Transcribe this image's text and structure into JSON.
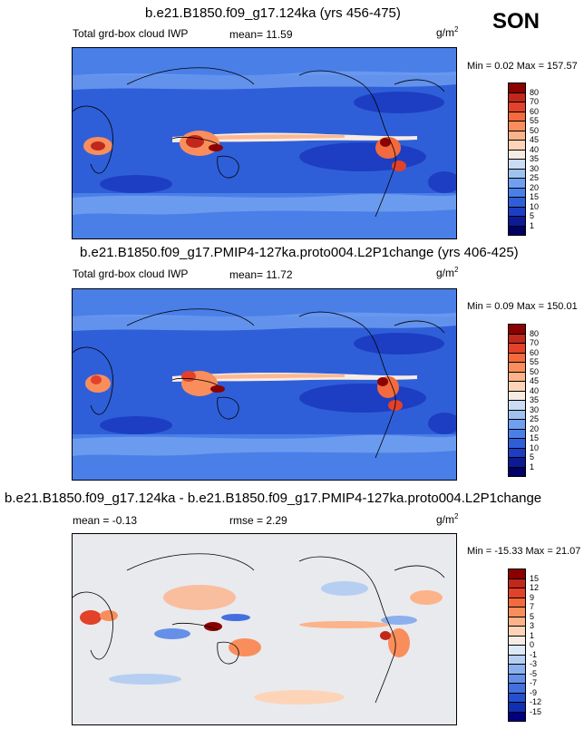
{
  "season": "SON",
  "panels": [
    {
      "title": "b.e21.B1850.f09_g17.124ka (yrs 456-475)",
      "subtitle": "Total grd-box cloud IWP",
      "stat": "mean=  11.59",
      "unit": "g/m",
      "unit_exp": "2",
      "minmax": "Min =   0.02 Max = 157.57",
      "colorbar_labels": [
        "80",
        "70",
        "60",
        "55",
        "50",
        "45",
        "40",
        "35",
        "30",
        "25",
        "20",
        "15",
        "10",
        "5",
        "1"
      ]
    },
    {
      "title": "b.e21.B1850.f09_g17.PMIP4-127ka.proto004.L2P1change (yrs 406-425)",
      "subtitle": "Total grd-box cloud IWP",
      "stat": "mean=  11.72",
      "unit": "g/m",
      "unit_exp": "2",
      "minmax": "Min =   0.09 Max = 150.01",
      "colorbar_labels": [
        "80",
        "70",
        "60",
        "55",
        "50",
        "45",
        "40",
        "35",
        "30",
        "25",
        "20",
        "15",
        "10",
        "5",
        "1"
      ]
    },
    {
      "title": "b.e21.B1850.f09_g17.124ka - b.e21.B1850.f09_g17.PMIP4-127ka.proto004.L2P1change",
      "stat": "mean =  -0.13",
      "stat2": "rmse =   2.29",
      "unit": "g/m",
      "unit_exp": "2",
      "minmax": "Min = -15.33 Max =  21.07",
      "colorbar_labels": [
        "15",
        "12",
        "9",
        "7",
        "5",
        "3",
        "1",
        "0",
        "-1",
        "-3",
        "-5",
        "-7",
        "-9",
        "-12",
        "-15"
      ]
    }
  ],
  "colors": {
    "abs_scale": [
      "#8b0000",
      "#c0281c",
      "#e2412a",
      "#f26a3d",
      "#f98e5c",
      "#fcb38a",
      "#fdd4b8",
      "#f7ece4",
      "#c9dcf2",
      "#9fc2ef",
      "#6f9ff0",
      "#4a7fe8",
      "#2f5fd8",
      "#1d3ec2",
      "#0c1a94",
      "#000066"
    ],
    "diff_scale": [
      "#8b0000",
      "#c0281c",
      "#e2412a",
      "#f26a3d",
      "#f98e5c",
      "#fcb38a",
      "#fdd4b8",
      "#f5ece6",
      "#dde9f7",
      "#b6cef2",
      "#8cb0ee",
      "#6590e8",
      "#4470df",
      "#2450cf",
      "#1030b0",
      "#000080"
    ]
  }
}
